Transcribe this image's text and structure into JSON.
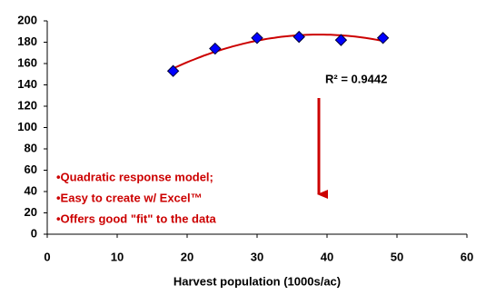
{
  "chart_data": {
    "type": "scatter",
    "x_label": "Harvest population (1000s/ac)",
    "x": [
      18,
      24,
      30,
      36,
      42,
      48
    ],
    "series": [
      {
        "color": "#0000ff",
        "values": [
          153,
          174,
          184,
          185,
          182,
          184
        ]
      }
    ],
    "trendline": "quadratic",
    "trendline_color": "#cc0000",
    "annotation": "R² = 0.9442",
    "notes": [
      "•Quadratic response model;",
      "•Easy to create w/ Excel™",
      "•Offers good \"fit\" to the data"
    ],
    "notes_color": "#cc0000",
    "xlim": [
      0,
      60
    ],
    "xticks": [
      0,
      10,
      20,
      30,
      40,
      50,
      60
    ],
    "ylim": [
      0,
      200
    ],
    "yticks": [
      0,
      20,
      40,
      60,
      80,
      100,
      120,
      140,
      160,
      180,
      200
    ],
    "grid": false
  }
}
